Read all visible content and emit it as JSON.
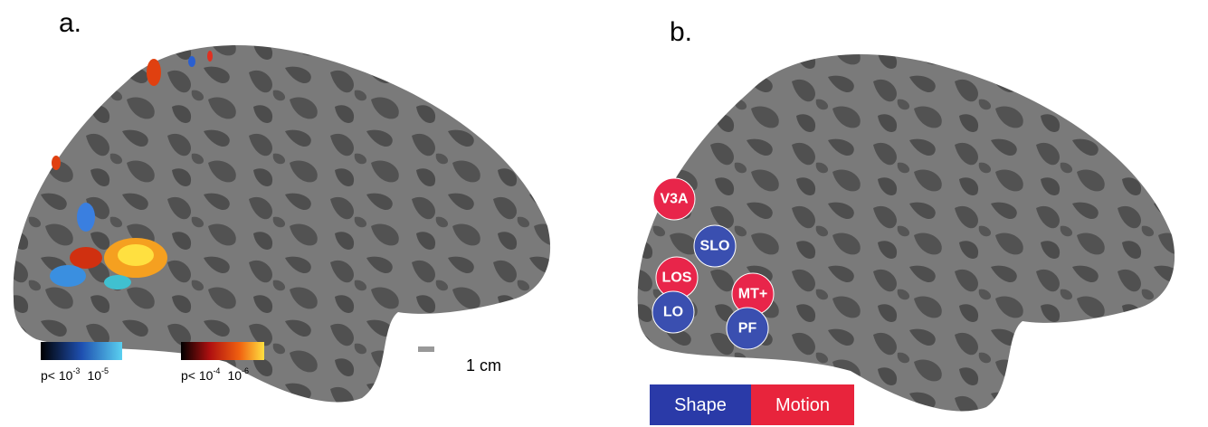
{
  "panel_a": {
    "label": "a.",
    "legend_blue": {
      "prefix": "p< 10",
      "exp": "-3",
      "end": "10",
      "end_exp": "-5"
    },
    "legend_hot": {
      "prefix": "p< 10",
      "exp": "-4",
      "end": "10",
      "end_exp": "-6"
    },
    "scale_bar": "1 cm"
  },
  "panel_b": {
    "label": "b.",
    "regions": [
      {
        "label": "V3A",
        "group": "motion"
      },
      {
        "label": "SLO",
        "group": "shape"
      },
      {
        "label": "LOS",
        "group": "motion"
      },
      {
        "label": "MT+",
        "group": "motion"
      },
      {
        "label": "LO",
        "group": "shape"
      },
      {
        "label": "PF",
        "group": "shape"
      }
    ],
    "key": {
      "shape": "Shape",
      "motion": "Motion"
    }
  }
}
